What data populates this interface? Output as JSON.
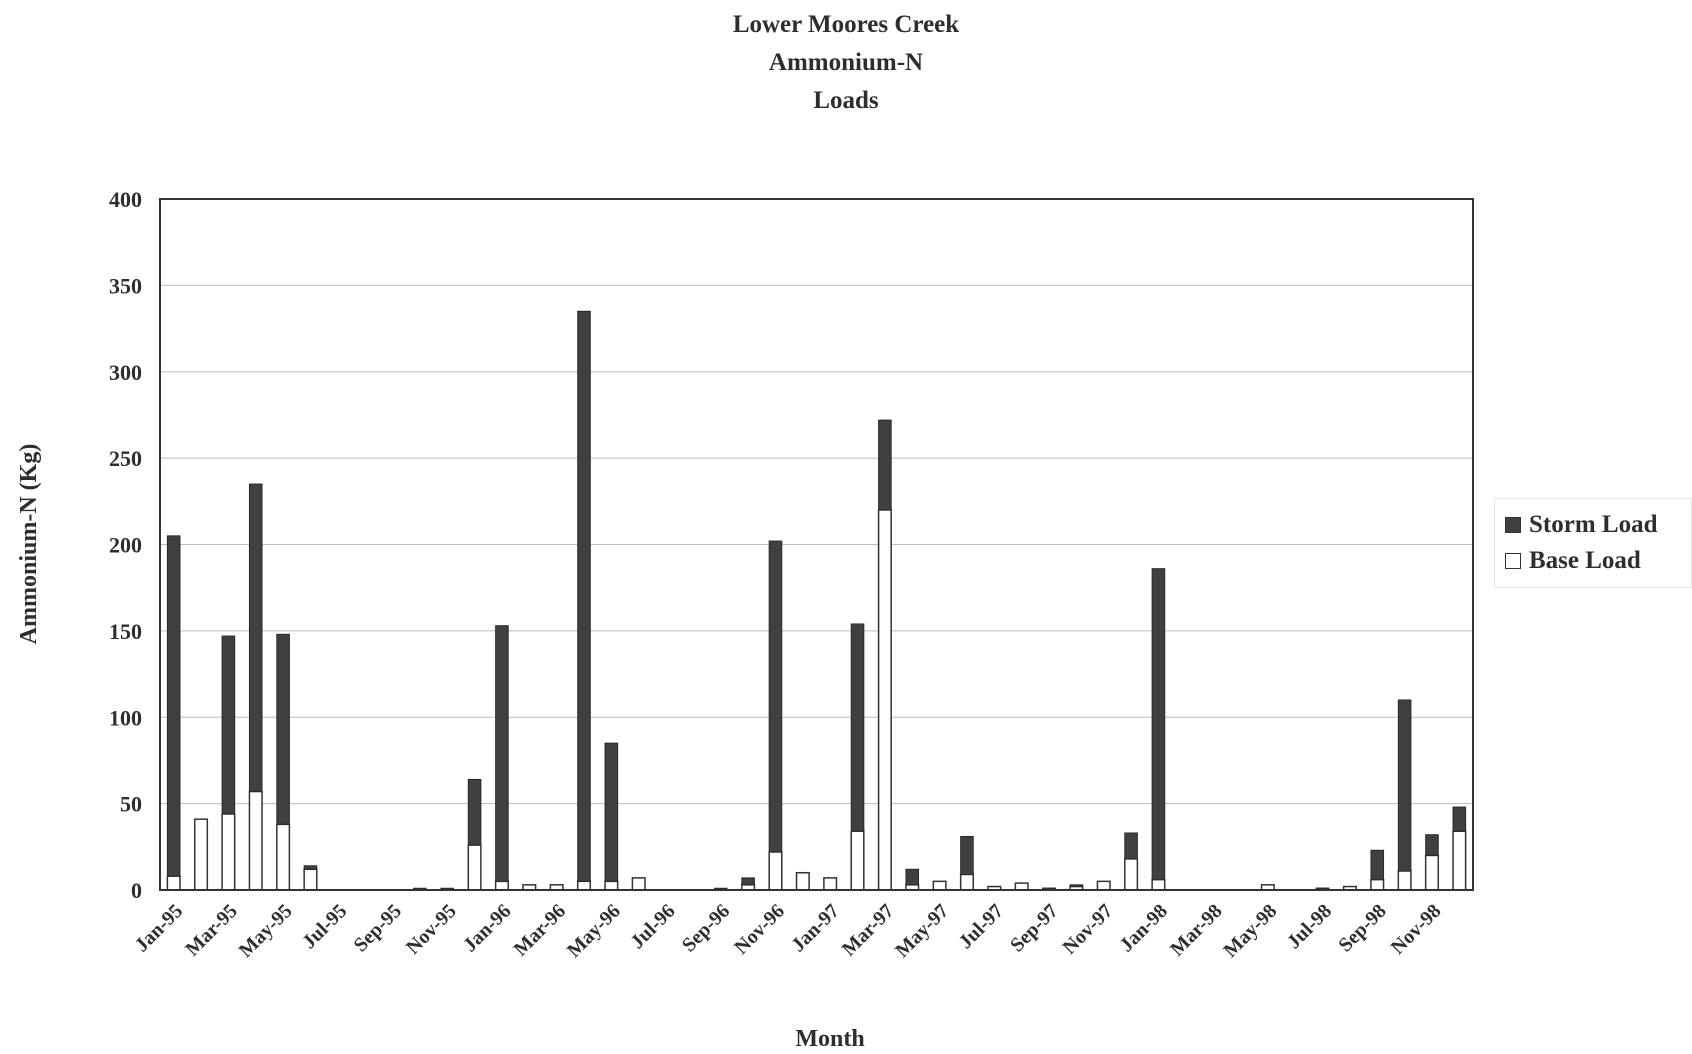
{
  "chart_data": {
    "type": "bar",
    "stacked": true,
    "title": [
      "Lower Moores Creek",
      "Ammonium-N",
      "Loads"
    ],
    "xlabel": "Month",
    "ylabel": "Ammonium-N (Kg)",
    "ylim": [
      0,
      400
    ],
    "yticks": [
      0,
      50,
      100,
      150,
      200,
      250,
      300,
      350,
      400
    ],
    "grid": true,
    "legend_position": "right",
    "categories": [
      "Jan-95",
      "Feb-95",
      "Mar-95",
      "Apr-95",
      "May-95",
      "Jun-95",
      "Jul-95",
      "Aug-95",
      "Sep-95",
      "Oct-95",
      "Nov-95",
      "Dec-95",
      "Jan-96",
      "Feb-96",
      "Mar-96",
      "Apr-96",
      "May-96",
      "Jun-96",
      "Jul-96",
      "Aug-96",
      "Sep-96",
      "Oct-96",
      "Nov-96",
      "Dec-96",
      "Jan-97",
      "Feb-97",
      "Mar-97",
      "Apr-97",
      "May-97",
      "Jun-97",
      "Jul-97",
      "Aug-97",
      "Sep-97",
      "Oct-97",
      "Nov-97",
      "Dec-97",
      "Jan-98",
      "Feb-98",
      "Mar-98",
      "Apr-98",
      "May-98",
      "Jun-98",
      "Jul-98",
      "Aug-98",
      "Sep-98",
      "Oct-98",
      "Nov-98",
      "Dec-98"
    ],
    "tick_labels": [
      "Jan-95",
      "Mar-95",
      "May-95",
      "Jul-95",
      "Sep-95",
      "Nov-95",
      "Jan-96",
      "Mar-96",
      "May-96",
      "Jul-96",
      "Sep-96",
      "Nov-96",
      "Jan-97",
      "Mar-97",
      "May-97",
      "Jul-97",
      "Sep-97",
      "Nov-97",
      "Jan-98",
      "Mar-98",
      "May-98",
      "Jul-98",
      "Sep-98",
      "Nov-98"
    ],
    "series": [
      {
        "name": "Base Load",
        "color": "#ffffff",
        "values": [
          8,
          41,
          44,
          57,
          38,
          12,
          0,
          0,
          0,
          0,
          0,
          26,
          5,
          3,
          3,
          5,
          5,
          7,
          0,
          0,
          0,
          3,
          22,
          10,
          7,
          34,
          220,
          3,
          5,
          9,
          2,
          4,
          1,
          2,
          5,
          18,
          6,
          0,
          0,
          0,
          3,
          0,
          1,
          2,
          6,
          11,
          20,
          34
        ]
      },
      {
        "name": "Storm Load",
        "color": "#404040",
        "values": [
          197,
          0,
          103,
          178,
          110,
          2,
          0,
          0,
          0,
          1,
          1,
          38,
          148,
          0,
          0,
          330,
          80,
          0,
          0,
          0,
          1,
          4,
          180,
          0,
          0,
          120,
          52,
          9,
          0,
          22,
          0,
          0,
          0,
          1,
          0,
          15,
          180,
          0,
          0,
          0,
          0,
          0,
          0,
          0,
          17,
          99,
          12,
          14
        ]
      }
    ]
  },
  "legend": {
    "items": [
      {
        "label": "Storm Load",
        "color": "#404040"
      },
      {
        "label": "Base Load",
        "color": "#ffffff"
      }
    ]
  }
}
